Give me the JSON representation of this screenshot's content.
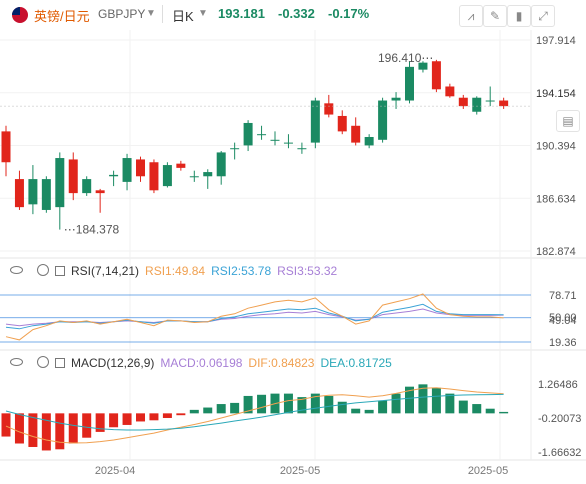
{
  "header": {
    "symbol_name": "英镑/日元",
    "symbol_code": "GBPJPY",
    "period": "日K",
    "last_price": "193.181",
    "change": "-0.332",
    "change_pct": "-0.17%",
    "colors": {
      "up": "#1b8a63",
      "down": "#e1251b",
      "accent": "#333333"
    }
  },
  "price_axis": {
    "ticks": [
      "197.914",
      "194.154",
      "190.394",
      "186.634",
      "182.874"
    ],
    "tick_values": [
      197.914,
      194.154,
      190.394,
      186.634,
      182.874
    ],
    "range": [
      182.874,
      197.914
    ]
  },
  "annotations": {
    "high_label": "196.410",
    "low_label": "184.378"
  },
  "x_axis": {
    "labels": [
      "2025-04",
      "2025-05",
      "2025-05"
    ]
  },
  "rsi": {
    "title": "RSI(7,14,21)",
    "rsi1": "RSI1:49.84",
    "rsi2": "RSI2:53.78",
    "rsi3": "RSI3:53.32",
    "ticks": [
      "78.71",
      "50.00",
      "49.04",
      "19.36"
    ],
    "tick_values": [
      78.71,
      50.0,
      49.04,
      19.36
    ],
    "colors": {
      "rsi1": "#f0a050",
      "rsi2": "#3ba3d6",
      "rsi3": "#a77fd6"
    }
  },
  "macd": {
    "title": "MACD(12,26,9)",
    "macd": "MACD:0.06198",
    "dif": "DIF:0.84823",
    "dea": "DEA:0.81725",
    "ticks": [
      "1.26486",
      "-0.20073",
      "-1.66632"
    ],
    "tick_values": [
      1.26486,
      -0.20073,
      -1.66632
    ],
    "colors": {
      "macd": "#a77fd6",
      "dif": "#f0a050",
      "dea": "#2aa8b8"
    }
  },
  "chart_data": {
    "type": "candlestick",
    "candles": [
      {
        "o": 191.4,
        "h": 191.8,
        "l": 188.2,
        "c": 189.2
      },
      {
        "o": 188.0,
        "h": 188.6,
        "l": 185.8,
        "c": 186.0
      },
      {
        "o": 186.2,
        "h": 189.0,
        "l": 185.5,
        "c": 188.0
      },
      {
        "o": 185.8,
        "h": 188.2,
        "l": 185.6,
        "c": 188.0
      },
      {
        "o": 186.0,
        "h": 189.9,
        "l": 184.4,
        "c": 189.5
      },
      {
        "o": 189.4,
        "h": 189.9,
        "l": 186.5,
        "c": 187.0
      },
      {
        "o": 187.0,
        "h": 188.2,
        "l": 186.8,
        "c": 188.0
      },
      {
        "o": 187.2,
        "h": 187.3,
        "l": 185.6,
        "c": 187.0
      },
      {
        "o": 188.2,
        "h": 188.6,
        "l": 187.5,
        "c": 188.3
      },
      {
        "o": 187.8,
        "h": 189.8,
        "l": 187.2,
        "c": 189.5
      },
      {
        "o": 189.4,
        "h": 189.6,
        "l": 187.8,
        "c": 188.2
      },
      {
        "o": 189.2,
        "h": 189.4,
        "l": 187.0,
        "c": 187.2
      },
      {
        "o": 187.5,
        "h": 189.2,
        "l": 187.4,
        "c": 189.0
      },
      {
        "o": 189.1,
        "h": 189.3,
        "l": 188.6,
        "c": 188.8
      },
      {
        "o": 188.2,
        "h": 188.6,
        "l": 187.8,
        "c": 188.2
      },
      {
        "o": 188.2,
        "h": 188.7,
        "l": 187.3,
        "c": 188.5
      },
      {
        "o": 188.2,
        "h": 190.0,
        "l": 187.6,
        "c": 189.9
      },
      {
        "o": 190.2,
        "h": 190.6,
        "l": 189.4,
        "c": 190.2
      },
      {
        "o": 190.4,
        "h": 192.2,
        "l": 190.0,
        "c": 192.0
      },
      {
        "o": 191.2,
        "h": 191.8,
        "l": 190.8,
        "c": 191.2
      },
      {
        "o": 190.8,
        "h": 191.4,
        "l": 190.4,
        "c": 190.8
      },
      {
        "o": 190.6,
        "h": 191.2,
        "l": 190.2,
        "c": 190.6
      },
      {
        "o": 190.2,
        "h": 190.6,
        "l": 189.8,
        "c": 190.2
      },
      {
        "o": 190.6,
        "h": 193.8,
        "l": 190.2,
        "c": 193.6
      },
      {
        "o": 193.4,
        "h": 194.0,
        "l": 192.4,
        "c": 192.6
      },
      {
        "o": 192.5,
        "h": 192.9,
        "l": 191.2,
        "c": 191.4
      },
      {
        "o": 191.8,
        "h": 192.4,
        "l": 190.4,
        "c": 190.6
      },
      {
        "o": 190.4,
        "h": 191.2,
        "l": 190.2,
        "c": 191.0
      },
      {
        "o": 190.8,
        "h": 193.8,
        "l": 190.6,
        "c": 193.6
      },
      {
        "o": 193.6,
        "h": 194.2,
        "l": 193.0,
        "c": 193.8
      },
      {
        "o": 193.6,
        "h": 196.4,
        "l": 193.4,
        "c": 196.0
      },
      {
        "o": 195.8,
        "h": 196.4,
        "l": 195.6,
        "c": 196.3
      },
      {
        "o": 196.4,
        "h": 196.5,
        "l": 194.2,
        "c": 194.4
      },
      {
        "o": 194.6,
        "h": 194.8,
        "l": 193.8,
        "c": 193.9
      },
      {
        "o": 193.8,
        "h": 194.0,
        "l": 193.0,
        "c": 193.2
      },
      {
        "o": 192.8,
        "h": 193.9,
        "l": 192.6,
        "c": 193.8
      },
      {
        "o": 193.6,
        "h": 194.6,
        "l": 193.2,
        "c": 193.6
      },
      {
        "o": 193.6,
        "h": 193.8,
        "l": 193.0,
        "c": 193.2
      }
    ],
    "rsi_series": {
      "rsi1": [
        26,
        22,
        35,
        40,
        46,
        44,
        46,
        42,
        45,
        48,
        44,
        40,
        47,
        46,
        44,
        45,
        52,
        55,
        62,
        66,
        70,
        72,
        70,
        75,
        60,
        52,
        42,
        46,
        66,
        70,
        74,
        80,
        62,
        54,
        52,
        51,
        51,
        49.84
      ],
      "rsi2": [
        38,
        36,
        40,
        42,
        45,
        44,
        45,
        43,
        45,
        47,
        45,
        43,
        46,
        46,
        45,
        45,
        49,
        51,
        55,
        57,
        59,
        61,
        60,
        62,
        56,
        52,
        46,
        48,
        57,
        60,
        63,
        67,
        58,
        55,
        54,
        54,
        54,
        53.78
      ],
      "rsi3": [
        42,
        40,
        42,
        43,
        45,
        45,
        45,
        44,
        45,
        46,
        45,
        44,
        46,
        46,
        45,
        45,
        48,
        49,
        52,
        54,
        55,
        57,
        56,
        58,
        54,
        51,
        47,
        48,
        54,
        56,
        58,
        61,
        56,
        54,
        53,
        53,
        53,
        53.32
      ]
    },
    "macd_series": {
      "hist": [
        -1.0,
        -1.3,
        -1.45,
        -1.6,
        -1.55,
        -1.3,
        -1.05,
        -0.8,
        -0.6,
        -0.5,
        -0.35,
        -0.3,
        -0.2,
        -0.08,
        0.15,
        0.25,
        0.4,
        0.45,
        0.75,
        0.8,
        0.85,
        0.85,
        0.7,
        0.85,
        0.75,
        0.5,
        0.2,
        0.15,
        0.55,
        0.85,
        1.15,
        1.25,
        1.1,
        0.85,
        0.55,
        0.4,
        0.2,
        0.06198
      ],
      "dif": [
        -0.55,
        -0.8,
        -1.0,
        -1.15,
        -1.25,
        -1.28,
        -1.27,
        -1.22,
        -1.15,
        -1.05,
        -0.95,
        -0.85,
        -0.72,
        -0.6,
        -0.48,
        -0.35,
        -0.2,
        -0.05,
        0.1,
        0.25,
        0.42,
        0.55,
        0.6,
        0.72,
        0.78,
        0.8,
        0.76,
        0.7,
        0.76,
        0.86,
        0.98,
        1.08,
        1.1,
        1.05,
        0.98,
        0.92,
        0.88,
        0.84823
      ],
      "dea": [
        0.1,
        -0.05,
        -0.18,
        -0.3,
        -0.42,
        -0.52,
        -0.6,
        -0.66,
        -0.7,
        -0.72,
        -0.72,
        -0.7,
        -0.68,
        -0.64,
        -0.58,
        -0.5,
        -0.42,
        -0.33,
        -0.25,
        -0.16,
        -0.06,
        0.04,
        0.14,
        0.22,
        0.3,
        0.38,
        0.45,
        0.5,
        0.55,
        0.6,
        0.65,
        0.7,
        0.74,
        0.77,
        0.79,
        0.8,
        0.81,
        0.81725
      ]
    }
  }
}
